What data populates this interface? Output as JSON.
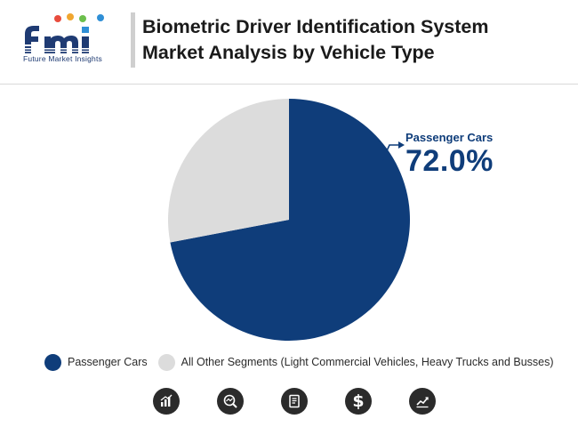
{
  "brand": {
    "logo_text": "fmi",
    "tagline": "Future Market Insights",
    "colors": {
      "blue": "#1f3b73",
      "light_blue": "#2f8fd6"
    }
  },
  "header": {
    "title_line1": "Biometric Driver Identification System",
    "title_line2": "Market Analysis by Vehicle Type"
  },
  "chart_data": {
    "type": "pie",
    "title": "Biometric Driver Identification System Market Analysis by Vehicle Type",
    "slices": [
      {
        "name": "Passenger Cars",
        "value": 72.0,
        "color": "#0f3d7a"
      },
      {
        "name": "All Other Segments (Light Commercial Vehicles, Heavy Trucks and Busses)",
        "value": 28.0,
        "color": "#dcdcdc"
      }
    ],
    "unit": "%",
    "legend_position": "bottom",
    "annotation": {
      "label": "Passenger Cars",
      "value": "72.0%"
    }
  },
  "footer_icons": [
    "bar-chart-icon",
    "magnifier-chart-icon",
    "document-icon",
    "dollar-icon",
    "trend-chart-icon"
  ],
  "footer_dollar": "$"
}
